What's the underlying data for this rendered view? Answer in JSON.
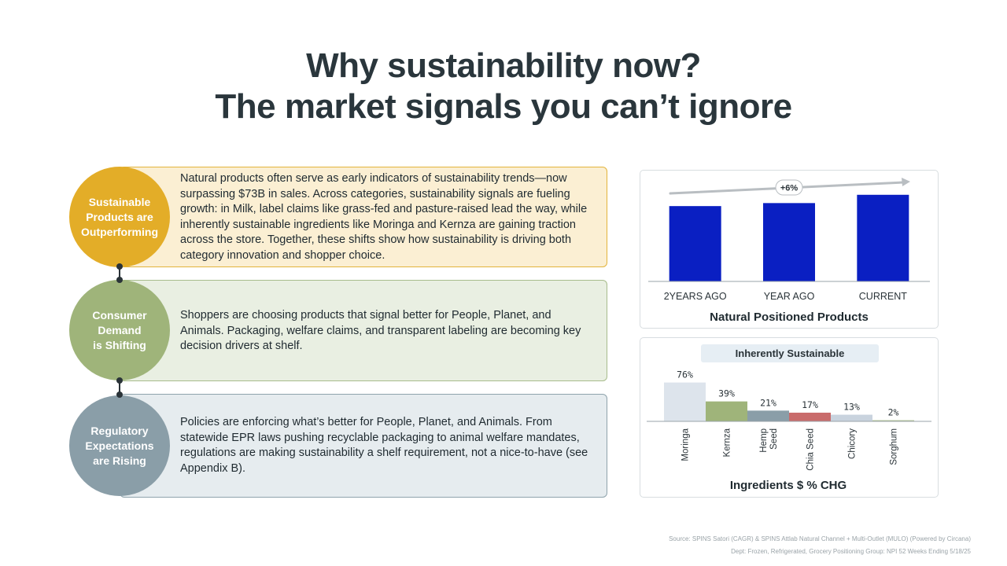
{
  "title": {
    "line1": "Why sustainability now?",
    "line2": "The market signals you can’t ignore"
  },
  "rows": [
    {
      "label": "Sustainable\nProducts are\nOutperforming",
      "text": "Natural products often serve as early indicators of sustainability trends—now surpassing $73B in sales. Across categories, sustainability signals are fueling growth: in Milk, label claims like grass-fed and pasture-raised lead the way, while inherently sustainable ingredients like Moringa and Kernza are gaining traction across the store. Together, these shifts show how sustainability is driving both category innovation and shopper choice.",
      "circle_color": "#e3ad28",
      "box_bg": "#fbefd3",
      "box_border": "#e3b43c"
    },
    {
      "label": "Consumer\nDemand\nis Shifting",
      "text": "Shoppers are choosing products that signal better for People, Planet, and Animals. Packaging, welfare claims, and transparent labeling are becoming key decision drivers at shelf.",
      "circle_color": "#9fb47a",
      "box_bg": "#e9efe2",
      "box_border": "#a8bc8c"
    },
    {
      "label": "Regulatory\nExpectations\nare Rising",
      "text": "Policies are enforcing what’s better for People, Planet, and Animals. From statewide EPR laws pushing recyclable packaging to animal welfare mandates, regulations are making sustainability a shelf requirement, not a nice-to-have (see Appendix B).",
      "circle_color": "#8a9ea8",
      "box_bg": "#e6ecef",
      "box_border": "#8fa3ac"
    }
  ],
  "chart_data": [
    {
      "type": "bar",
      "title": "Natural Positioned Products",
      "categories": [
        "2YEARS AGO",
        "YEAR AGO",
        "CURRENT"
      ],
      "values": [
        100,
        104,
        115
      ],
      "ylim": [
        0,
        120
      ],
      "bar_color": "#0a1fc2",
      "annotation": "+6%",
      "grid": false,
      "legend": "none"
    },
    {
      "type": "bar",
      "title": "Ingredients $ % CHG",
      "subtitle": "Inherently Sustainable",
      "categories": [
        "Moringa",
        "Kernza",
        "Hemp\nSeed",
        "Chia Seed",
        "Chicory",
        "Sorghum"
      ],
      "values": [
        76,
        39,
        21,
        17,
        13,
        2
      ],
      "data_labels": [
        "76%",
        "39%",
        "21%",
        "17%",
        "13%",
        "2%"
      ],
      "colors": [
        "#dde4ec",
        "#9fb47a",
        "#8a9ea8",
        "#c96b6b",
        "#c9d3de",
        "#b6c59a"
      ],
      "ylim": [
        0,
        80
      ],
      "grid": false,
      "legend": "none"
    }
  ],
  "source": {
    "line1": "Source: SPINS Satori (CAGR) & SPINS Attlab Natural Channel + Multi-Outlet (MULO) (Powered by Circana)",
    "line2": "Dept: Frozen, Refrigerated, Grocery Positioning Group: NPI 52 Weeks Ending 5/18/25"
  }
}
